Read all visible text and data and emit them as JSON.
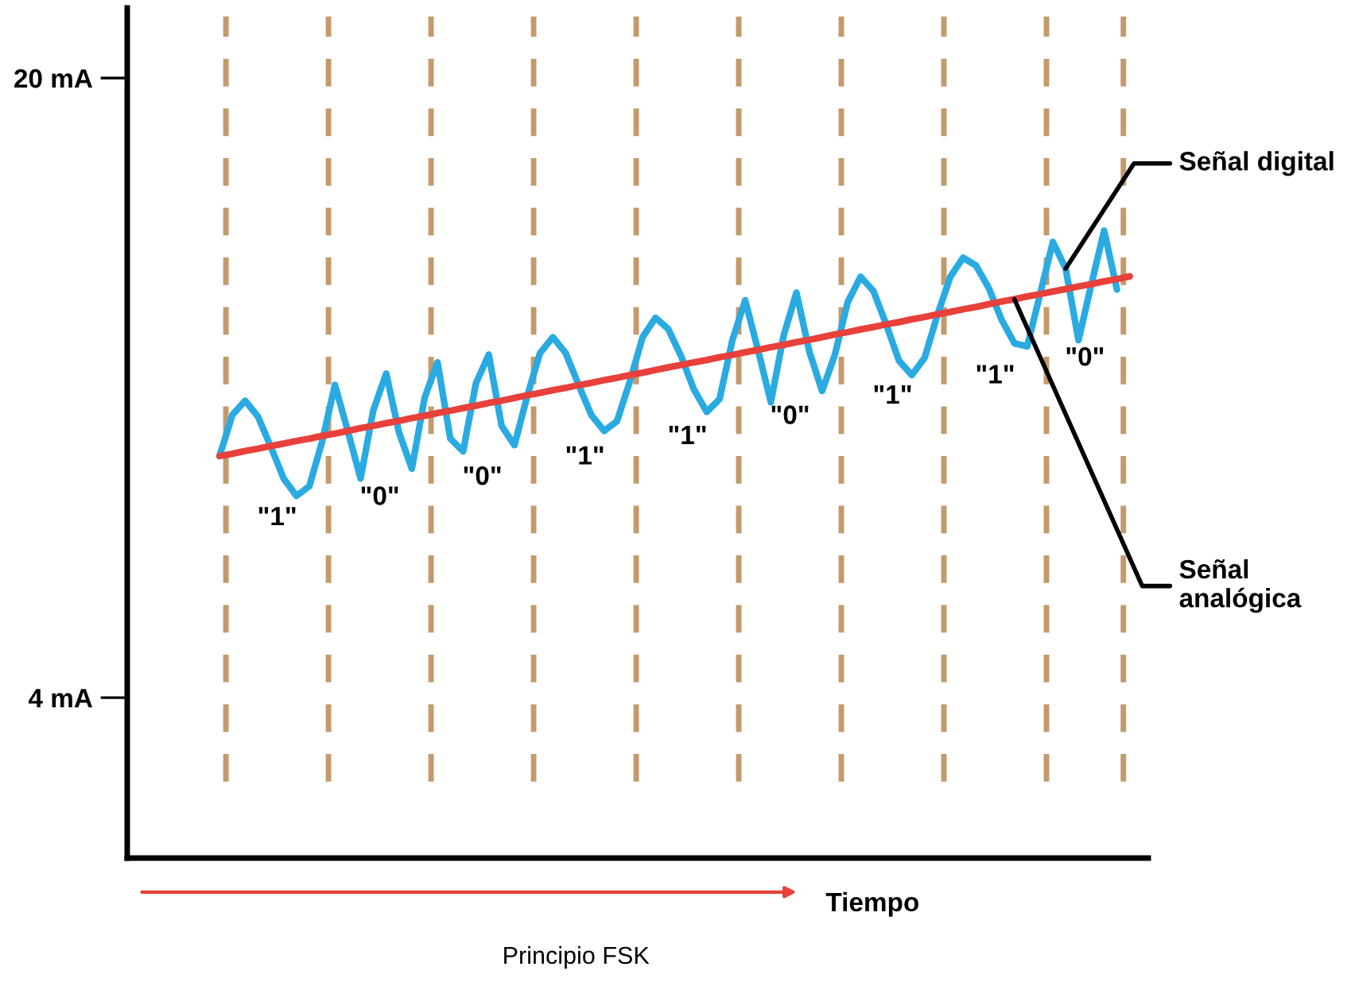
{
  "chart_data": {
    "type": "line",
    "xlabel": "Tiempo",
    "categories": [
      null,
      null,
      null,
      null,
      null,
      null,
      null,
      null,
      null,
      null,
      null,
      null,
      null,
      null,
      null,
      null,
      null,
      null,
      null,
      null,
      null,
      null,
      null,
      null,
      null,
      null,
      null,
      null,
      null,
      null,
      null,
      null,
      null,
      null,
      null,
      null,
      null,
      null,
      null,
      null,
      null,
      null,
      null,
      null,
      null,
      null,
      null,
      null,
      null,
      null,
      null,
      null,
      null,
      null,
      null,
      null,
      null,
      null,
      null,
      null,
      null,
      null,
      null,
      null,
      null,
      null,
      null,
      null,
      null,
      null,
      null,
      null
    ],
    "ylim": [
      -0.14,
      21.81
    ],
    "yticks": [
      {
        "value": 4,
        "label": "4 mA"
      },
      {
        "value": 20,
        "label": "20 mA"
      }
    ],
    "tick_labels": "y",
    "grid": false,
    "legend": false,
    "marker": "none",
    "line_style": "solid",
    "series": [
      {
        "name": "Señal digital",
        "color": "#29abe2",
        "values": [
          10.24,
          11.3,
          11.67,
          11.26,
          10.48,
          9.66,
          9.21,
          9.46,
          10.61,
          12.08,
          10.89,
          9.66,
          11.43,
          12.37,
          10.85,
          9.91,
          11.75,
          12.66,
          10.69,
          10.36,
          12.12,
          12.86,
          11.02,
          10.52,
          11.79,
          12.9,
          13.31,
          12.9,
          12.08,
          11.3,
          10.89,
          11.14,
          12.16,
          13.31,
          13.81,
          13.52,
          12.82,
          11.96,
          11.38,
          11.71,
          13.23,
          14.26,
          12.98,
          11.63,
          13.35,
          14.46,
          12.94,
          11.92,
          12.86,
          14.22,
          14.87,
          14.5,
          13.64,
          12.7,
          12.33,
          12.78,
          13.89,
          14.87,
          15.36,
          15.16,
          14.58,
          13.76,
          13.15,
          13.07,
          14.42,
          15.77,
          15.08,
          13.23,
          14.67,
          16.06,
          14.54,
          null
        ]
      },
      {
        "name": "Señal analógica",
        "color": "#e8403a",
        "values": [
          10.24,
          10.3,
          10.37,
          10.43,
          10.5,
          10.56,
          10.63,
          10.69,
          10.76,
          10.82,
          10.89,
          10.96,
          11.02,
          11.09,
          11.15,
          11.22,
          11.28,
          11.35,
          11.41,
          11.48,
          11.54,
          11.61,
          11.67,
          11.74,
          11.81,
          11.87,
          11.94,
          12.0,
          12.07,
          12.13,
          12.2,
          12.26,
          12.33,
          12.39,
          12.46,
          12.53,
          12.59,
          12.66,
          12.72,
          12.79,
          12.85,
          12.92,
          12.98,
          13.05,
          13.11,
          13.18,
          13.24,
          13.31,
          13.38,
          13.44,
          13.51,
          13.57,
          13.64,
          13.7,
          13.77,
          13.83,
          13.9,
          13.96,
          14.03,
          14.09,
          14.16,
          14.23,
          14.29,
          14.36,
          14.42,
          14.49,
          14.55,
          14.62,
          14.68,
          14.75,
          14.81,
          14.88
        ]
      }
    ],
    "annotations": [
      "\"1\"",
      "\"0\"",
      "\"0\"",
      "\"1\"",
      "\"1\"",
      "\"0\"",
      "\"1\"",
      "\"1\"",
      "\"0\"",
      "Principio FSK"
    ]
  }
}
